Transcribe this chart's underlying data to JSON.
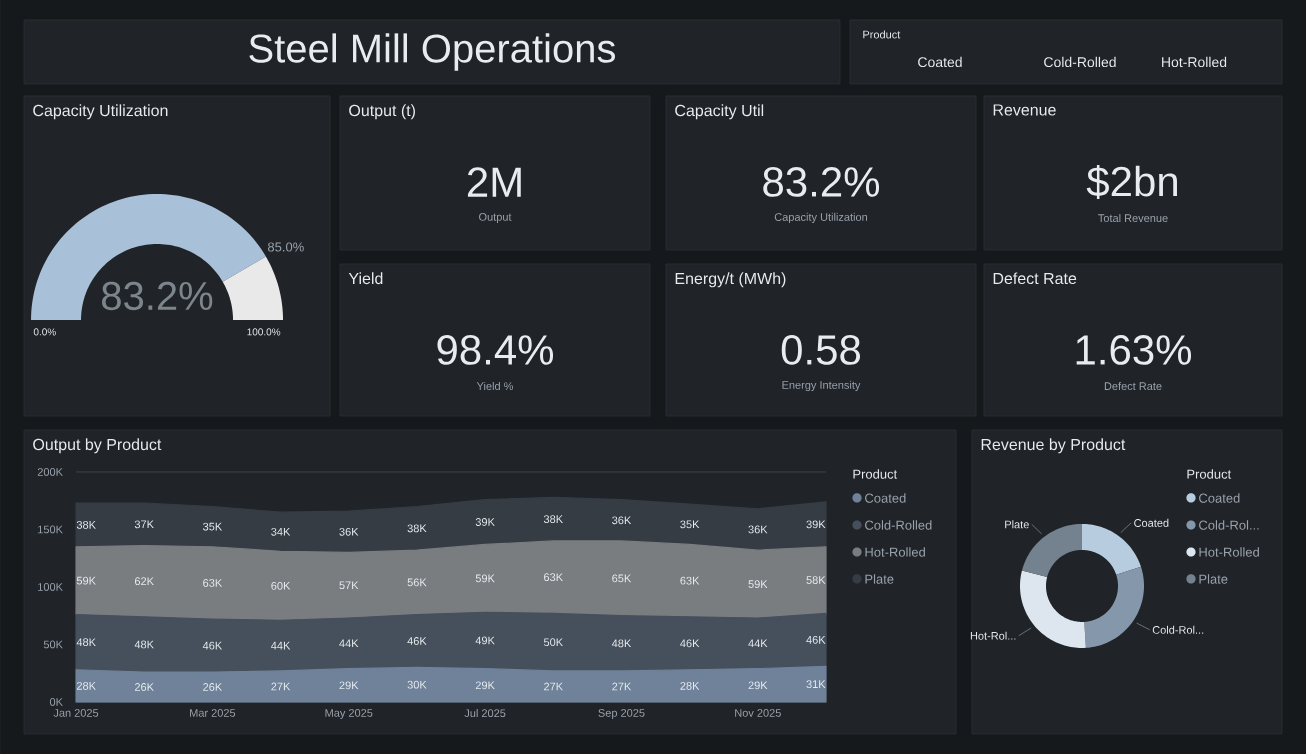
{
  "chart_data": [
    {
      "type": "other",
      "title": "Steel Mill Operations"
    },
    {
      "type": "other",
      "title": "Product",
      "annotations": [
        "Coated",
        "Cold-Rolled",
        "Hot-Rolled"
      ]
    },
    {
      "type": "donut",
      "title": "Capacity Utilization",
      "categories": [
        null,
        null
      ],
      "values": [
        83.2,
        16.8
      ],
      "colors": [
        "#a9c0d9",
        "#e9e9e9"
      ],
      "value_labels": [
        "83.2%",
        null
      ],
      "annotations": [
        "0.0%",
        "100.0%",
        "85.0%"
      ]
    },
    {
      "type": "other",
      "title": "Output (t)",
      "annotations": [
        "2M",
        "Output"
      ]
    },
    {
      "type": "other",
      "title": "Capacity Util",
      "annotations": [
        "83.2%",
        "Capacity Utilization"
      ]
    },
    {
      "type": "other",
      "title": "Revenue",
      "annotations": [
        "$2bn",
        "Total Revenue"
      ]
    },
    {
      "type": "other",
      "title": "Yield",
      "annotations": [
        "98.4%",
        "Yield %"
      ]
    },
    {
      "type": "other",
      "title": "Energy/t (MWh)",
      "annotations": [
        "0.58",
        "Energy Intensity"
      ]
    },
    {
      "type": "other",
      "title": "Defect Rate",
      "annotations": [
        "1.63%",
        "Defect Rate"
      ]
    },
    {
      "type": "area",
      "title": "Output by Product",
      "stacked": true,
      "legend": "right",
      "legend_title": "Product",
      "grid": "y",
      "x": [
        "2025-01",
        "2025-02",
        "2025-03",
        "2025-04",
        "2025-05",
        "2025-06",
        "2025-07",
        "2025-08",
        "2025-09",
        "2025-10",
        "2025-11",
        "2025-12"
      ],
      "xlim": [
        "2025-01",
        "2025-12"
      ],
      "xticks": [
        {
          "value": "2025-01",
          "label": "Jan 2025"
        },
        {
          "value": "2025-03",
          "label": "Mar 2025"
        },
        {
          "value": "2025-05",
          "label": "May 2025"
        },
        {
          "value": "2025-07",
          "label": "Jul 2025"
        },
        {
          "value": "2025-09",
          "label": "Sep 2025"
        },
        {
          "value": "2025-11",
          "label": "Nov 2025"
        }
      ],
      "ylim": [
        0,
        200
      ],
      "yticks": [
        {
          "value": 0,
          "label": "0K"
        },
        {
          "value": 50,
          "label": "50K"
        },
        {
          "value": 100,
          "label": "100K"
        },
        {
          "value": 150,
          "label": "150K"
        },
        {
          "value": 200,
          "label": "200K"
        }
      ],
      "series": [
        {
          "name": "Coated",
          "color": "#6f8299",
          "values": [
            28,
            26,
            26,
            27,
            29,
            30,
            29,
            27,
            27,
            28,
            29,
            31
          ],
          "value_labels": [
            "28K",
            "26K",
            "26K",
            "27K",
            "29K",
            "30K",
            "29K",
            "27K",
            "27K",
            "28K",
            "29K",
            "31K"
          ]
        },
        {
          "name": "Cold-Rolled",
          "color": "#46505c",
          "values": [
            48,
            48,
            46,
            44,
            44,
            46,
            49,
            50,
            48,
            46,
            44,
            46
          ],
          "value_labels": [
            "48K",
            "48K",
            "46K",
            "44K",
            "44K",
            "46K",
            "49K",
            "50K",
            "48K",
            "46K",
            "44K",
            "46K"
          ]
        },
        {
          "name": "Hot-Rolled",
          "color": "#7a7d80",
          "values": [
            59,
            62,
            63,
            60,
            57,
            56,
            59,
            63,
            65,
            63,
            59,
            58
          ],
          "value_labels": [
            "59K",
            "62K",
            "63K",
            "60K",
            "57K",
            "56K",
            "59K",
            "63K",
            "65K",
            "63K",
            "59K",
            "58K"
          ]
        },
        {
          "name": "Plate",
          "color": "#353c44",
          "values": [
            38,
            37,
            35,
            34,
            36,
            38,
            39,
            38,
            36,
            35,
            36,
            39
          ],
          "value_labels": [
            "38K",
            "37K",
            "35K",
            "34K",
            "36K",
            "38K",
            "39K",
            "38K",
            "36K",
            "35K",
            "36K",
            "39K"
          ]
        }
      ]
    },
    {
      "type": "donut",
      "title": "Revenue by Product",
      "legend": "right",
      "legend_title": "Product",
      "categories": [
        "Coated",
        "Cold-Rol...",
        "Hot-Rolled",
        "Plate"
      ],
      "values": [
        20,
        29,
        30,
        21
      ],
      "colors": [
        "#b8cce0",
        "#8597ab",
        "#dde6ef",
        "#74828f"
      ],
      "annotations": [
        {
          "text": "Coated",
          "x": "Coated"
        },
        {
          "text": "Cold-Rol...",
          "x": "Cold-Rol..."
        },
        {
          "text": "Hot-Rol...",
          "x": "Hot-Rolled"
        },
        {
          "text": "Plate",
          "x": "Plate"
        }
      ]
    }
  ]
}
